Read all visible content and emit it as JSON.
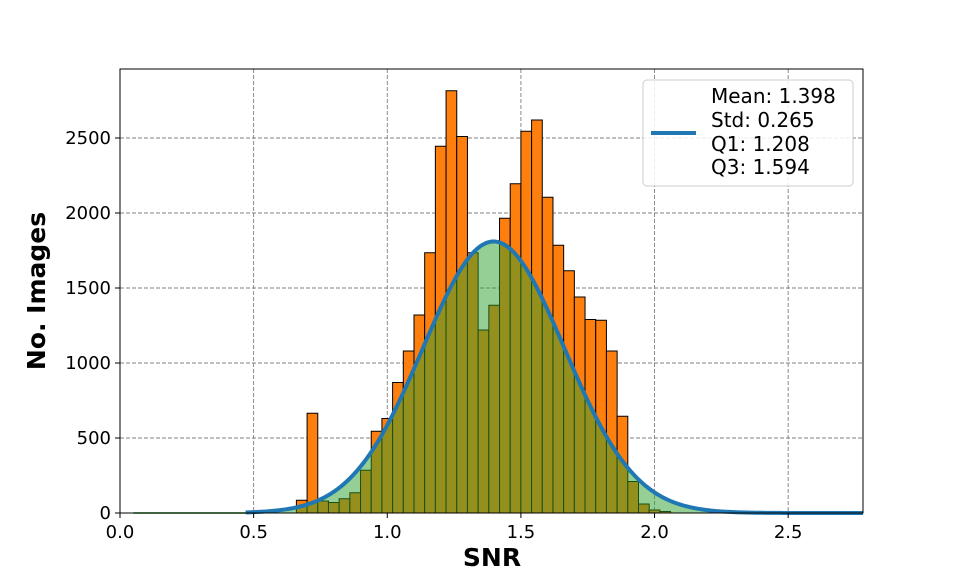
{
  "chart_data": {
    "type": "bar",
    "xlabel": "SNR",
    "ylabel": "No. Images",
    "xlim": [
      0.0,
      2.78
    ],
    "ylim": [
      0,
      2960
    ],
    "xticks": [
      0.0,
      0.5,
      1.0,
      1.5,
      2.0,
      2.5
    ],
    "xtick_labels": [
      "0.0",
      "0.5",
      "1.0",
      "1.5",
      "2.0",
      "2.5"
    ],
    "yticks": [
      0,
      500,
      1000,
      1500,
      2000,
      2500
    ],
    "ytick_labels": [
      "0",
      "500",
      "1000",
      "1500",
      "2000",
      "2500"
    ],
    "grid": true,
    "legend_position": "upper right",
    "legend": [
      "Mean: 1.398",
      "Std: 0.265",
      "Q1: 1.208",
      "Q3: 1.594"
    ],
    "bin_width": 0.04,
    "bins_start": [
      0.66,
      0.7,
      0.74,
      0.78,
      0.82,
      0.86,
      0.9,
      0.94,
      0.98,
      1.02,
      1.06,
      1.1,
      1.14,
      1.18,
      1.22,
      1.26,
      1.3,
      1.34,
      1.38,
      1.42,
      1.46,
      1.5,
      1.54,
      1.58,
      1.62,
      1.66,
      1.7,
      1.74,
      1.78,
      1.82,
      1.86,
      1.9,
      1.94,
      1.98,
      2.02
    ],
    "counts": [
      85,
      665,
      80,
      70,
      95,
      135,
      285,
      545,
      630,
      870,
      1080,
      1320,
      1735,
      2445,
      2815,
      2510,
      1735,
      1220,
      1385,
      1965,
      2195,
      2545,
      2620,
      2105,
      1785,
      1615,
      1440,
      1290,
      1285,
      1080,
      645,
      210,
      60,
      20,
      10
    ],
    "fit": {
      "type": "normal",
      "mean": 1.398,
      "std": 0.265,
      "peak": 1810,
      "x_range": [
        0.47,
        2.78
      ]
    },
    "colors": {
      "bars": "#ff7f0e",
      "bar_edge": "#000000",
      "fit_line": "#1f77b4",
      "fit_fill": "#2ca02c",
      "grid": "#808080"
    }
  }
}
